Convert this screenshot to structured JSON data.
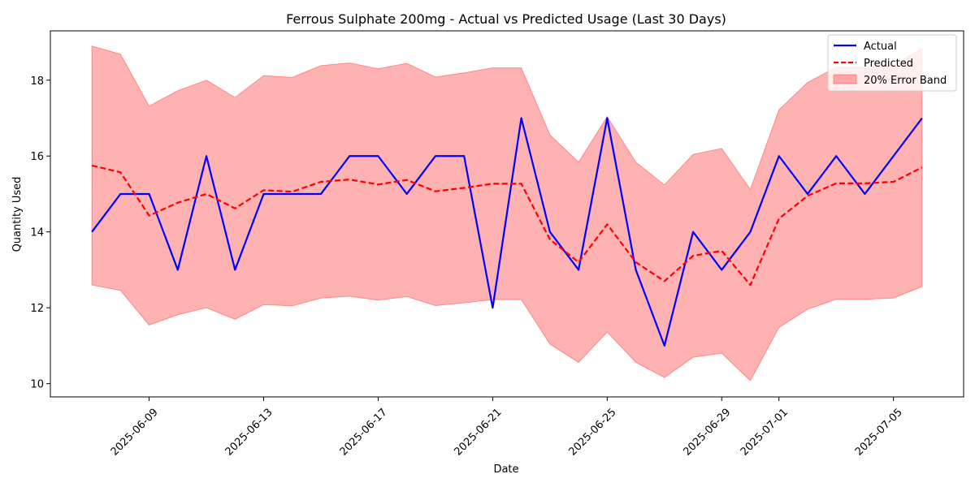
{
  "chart_data": {
    "type": "line",
    "title": "Ferrous Sulphate 200mg - Actual vs Predicted Usage (Last 30 Days)",
    "xlabel": "Date",
    "ylabel": "Quantity Used",
    "x": [
      "2025-06-07",
      "2025-06-08",
      "2025-06-09",
      "2025-06-10",
      "2025-06-11",
      "2025-06-12",
      "2025-06-13",
      "2025-06-14",
      "2025-06-15",
      "2025-06-16",
      "2025-06-17",
      "2025-06-18",
      "2025-06-19",
      "2025-06-20",
      "2025-06-21",
      "2025-06-22",
      "2025-06-23",
      "2025-06-24",
      "2025-06-25",
      "2025-06-26",
      "2025-06-27",
      "2025-06-28",
      "2025-06-29",
      "2025-06-30",
      "2025-07-01",
      "2025-07-02",
      "2025-07-03",
      "2025-07-04",
      "2025-07-05",
      "2025-07-06"
    ],
    "xticks": [
      "2025-06-09",
      "2025-06-13",
      "2025-06-17",
      "2025-06-21",
      "2025-06-25",
      "2025-06-29",
      "2025-07-01",
      "2025-07-05"
    ],
    "yticks": [
      10,
      12,
      14,
      16,
      18
    ],
    "ylim": [
      9.65,
      19.3
    ],
    "grid": false,
    "legend_position": "top-right",
    "series": [
      {
        "name": "Actual",
        "color": "#0000ff",
        "style": "solid",
        "values": [
          14,
          15,
          15,
          13,
          16,
          13,
          15,
          15,
          15,
          16,
          16,
          15,
          16,
          16,
          12,
          17,
          14,
          13,
          17,
          13,
          11,
          14,
          13,
          14,
          16,
          15,
          16,
          15,
          16,
          17
        ]
      },
      {
        "name": "Predicted",
        "color": "#ff0000",
        "style": "dashed",
        "values": [
          15.75,
          15.57,
          14.43,
          14.77,
          15.0,
          14.62,
          15.1,
          15.06,
          15.32,
          15.38,
          15.25,
          15.37,
          15.07,
          15.16,
          15.27,
          15.27,
          13.8,
          13.2,
          14.2,
          13.2,
          12.7,
          13.37,
          13.5,
          12.6,
          14.35,
          14.95,
          15.28,
          15.28,
          15.32,
          15.7
        ]
      }
    ],
    "band": {
      "name": "20% Error Band",
      "color": "#ff0000",
      "fill_opacity": 0.3,
      "relative_error": 0.2
    }
  }
}
